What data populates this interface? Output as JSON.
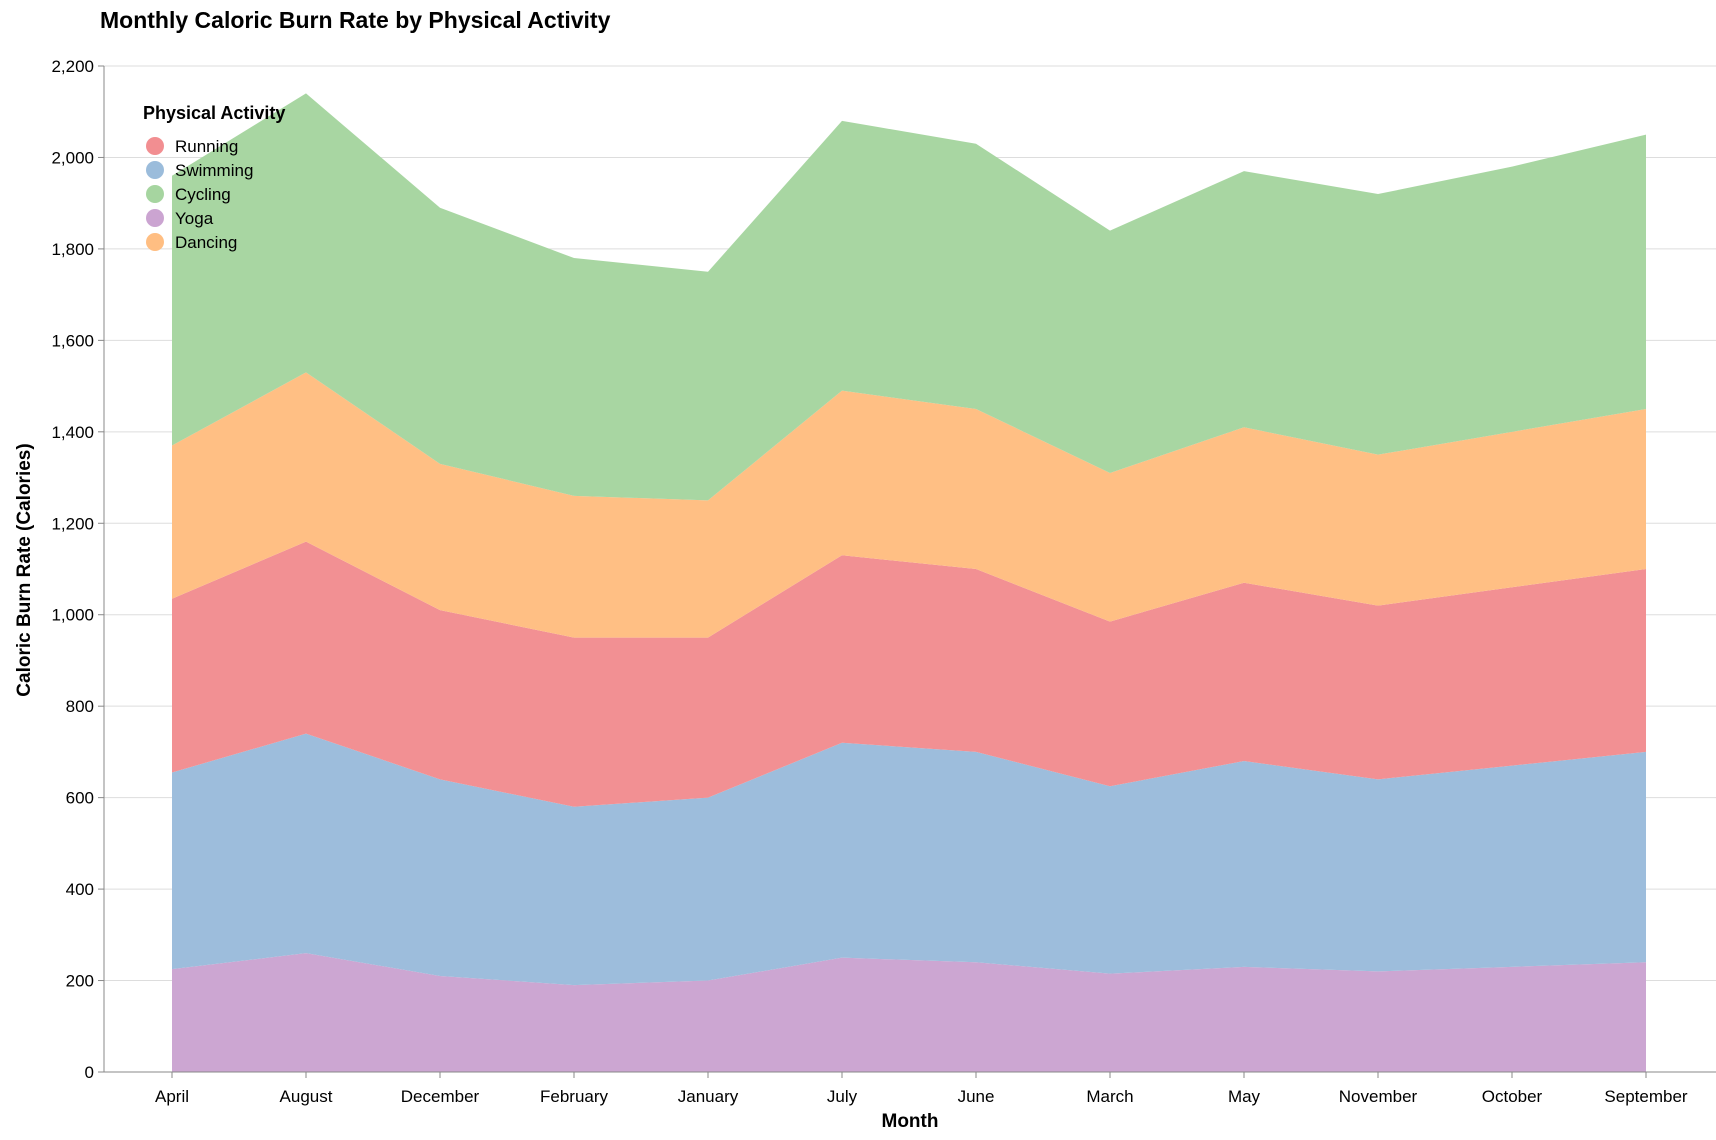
{
  "chart_data": {
    "type": "area",
    "stacked": true,
    "title": "Monthly Caloric Burn Rate by Physical Activity",
    "xlabel": "Month",
    "ylabel": "Caloric Burn Rate (Calories)",
    "ylim": [
      0,
      2200
    ],
    "yticks": [
      "0",
      "200",
      "400",
      "600",
      "800",
      "1,000",
      "1,200",
      "1,400",
      "1,600",
      "1,800",
      "2,000",
      "2,200"
    ],
    "grid": true,
    "legend_title": "Physical Activity",
    "legend_position": "top-left",
    "categories": [
      "April",
      "August",
      "December",
      "February",
      "January",
      "July",
      "June",
      "March",
      "May",
      "November",
      "October",
      "September"
    ],
    "stack_order": [
      "Yoga",
      "Swimming",
      "Running",
      "Dancing",
      "Cycling"
    ],
    "series": [
      {
        "name": "Running",
        "color": "#f28e91",
        "values": [
          380,
          420,
          370,
          370,
          350,
          410,
          400,
          360,
          390,
          380,
          390,
          400
        ]
      },
      {
        "name": "Swimming",
        "color": "#9bbcdb",
        "values": [
          430,
          480,
          430,
          390,
          400,
          470,
          460,
          410,
          450,
          420,
          440,
          460
        ]
      },
      {
        "name": "Cycling",
        "color": "#a6d5a0",
        "values": [
          590,
          610,
          560,
          520,
          500,
          590,
          580,
          530,
          560,
          570,
          580,
          600
        ]
      },
      {
        "name": "Yoga",
        "color": "#cba4d1",
        "values": [
          225,
          260,
          210,
          190,
          200,
          250,
          240,
          215,
          230,
          220,
          230,
          240
        ]
      },
      {
        "name": "Dancing",
        "color": "#ffbe82",
        "values": [
          335,
          370,
          320,
          310,
          300,
          360,
          350,
          325,
          340,
          330,
          340,
          350
        ]
      }
    ]
  }
}
